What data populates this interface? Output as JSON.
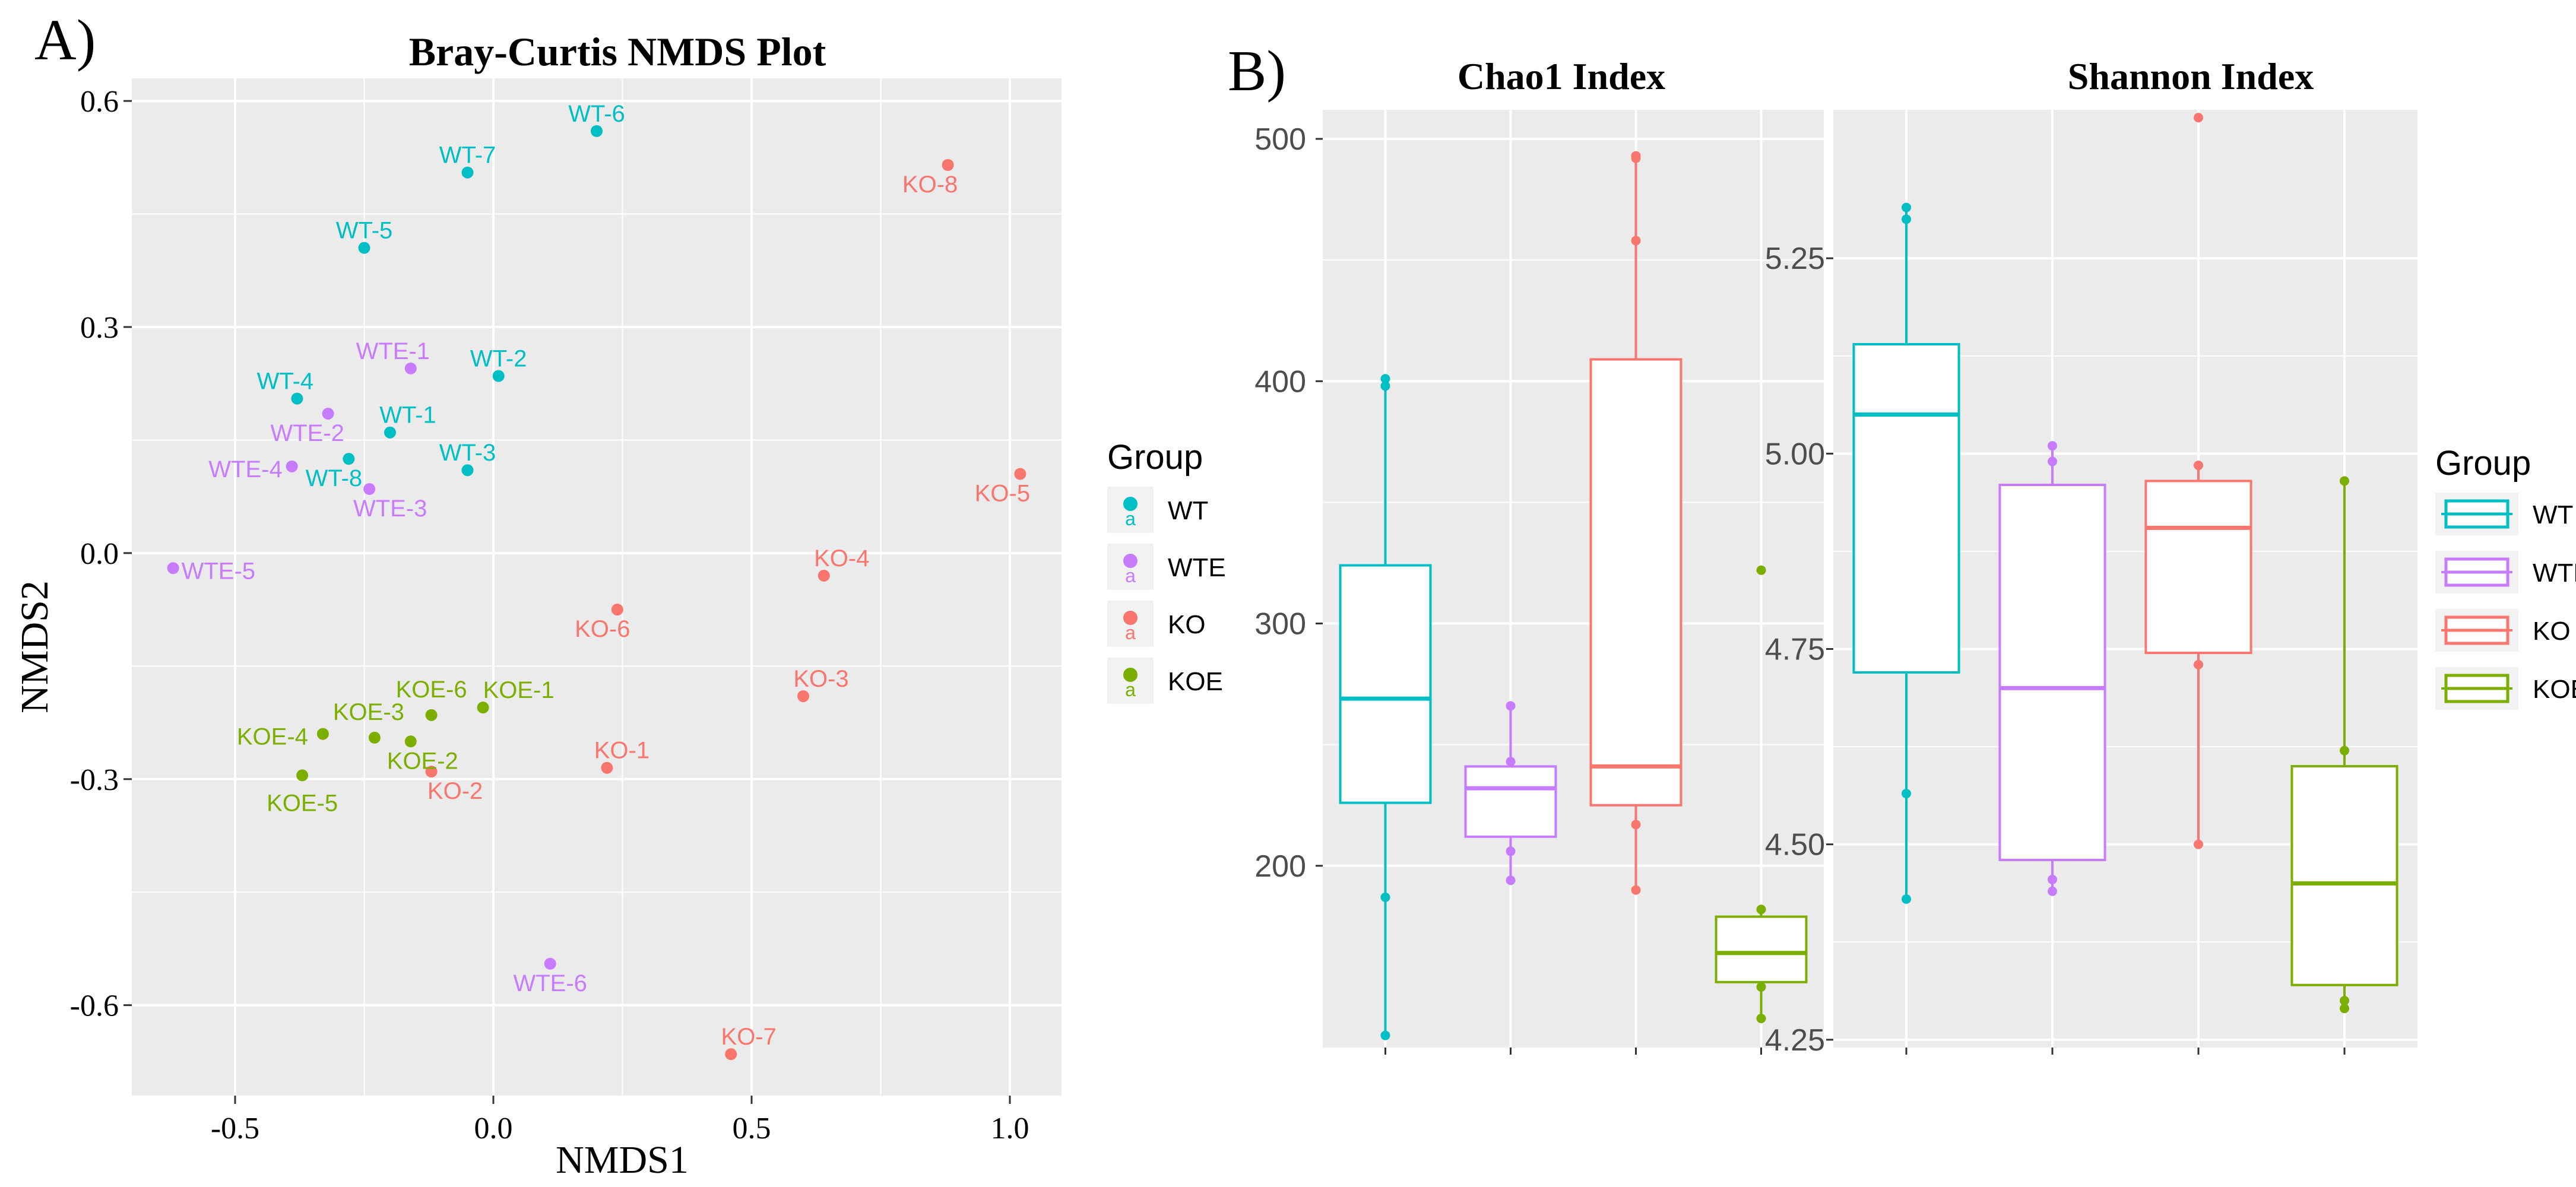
{
  "panel_labels": {
    "a": "A)",
    "b": "B)"
  },
  "colors": {
    "WT": "#00BFC4",
    "WTE": "#C77CFF",
    "KO": "#F8766D",
    "KOE": "#7CAE00",
    "panel": "#EBEBEB",
    "grid": "#FFFFFF",
    "axis_text": "#4D4D4D"
  },
  "legend": {
    "title": "Group",
    "entries": [
      {
        "label": "WT",
        "color": "#00BFC4"
      },
      {
        "label": "WTE",
        "color": "#C77CFF"
      },
      {
        "label": "KO",
        "color": "#F8766D"
      },
      {
        "label": "KOE",
        "color": "#7CAE00"
      }
    ]
  },
  "chart_data": [
    {
      "type": "scatter",
      "title": "Bray-Curtis NMDS Plot",
      "xlabel": "NMDS1",
      "ylabel": "NMDS2",
      "xlim": [
        -0.7,
        1.1
      ],
      "ylim": [
        -0.72,
        0.63
      ],
      "xticks": [
        -0.5,
        0.0,
        0.5,
        1.0
      ],
      "xtick_labels": [
        "-0.5",
        "0.0",
        "0.5",
        "1.0"
      ],
      "yticks": [
        0.6,
        0.3,
        0.0,
        -0.3,
        -0.6
      ],
      "ytick_labels": [
        "0.6",
        "0.3",
        "0.0",
        "-0.3",
        "-0.6"
      ],
      "points": [
        {
          "label": "WT-6",
          "group": "WT",
          "x": 0.2,
          "y": 0.56
        },
        {
          "label": "WT-7",
          "group": "WT",
          "x": -0.05,
          "y": 0.505
        },
        {
          "label": "WT-5",
          "group": "WT",
          "x": -0.25,
          "y": 0.405
        },
        {
          "label": "WT-2",
          "group": "WT",
          "x": 0.01,
          "y": 0.235
        },
        {
          "label": "WT-4",
          "group": "WT",
          "x": -0.38,
          "y": 0.205
        },
        {
          "label": "WT-1",
          "group": "WT",
          "x": -0.2,
          "y": 0.16
        },
        {
          "label": "WT-8",
          "group": "WT",
          "x": -0.28,
          "y": 0.125
        },
        {
          "label": "WT-3",
          "group": "WT",
          "x": -0.05,
          "y": 0.11
        },
        {
          "label": "WTE-1",
          "group": "WTE",
          "x": -0.16,
          "y": 0.245
        },
        {
          "label": "WTE-2",
          "group": "WTE",
          "x": -0.32,
          "y": 0.185
        },
        {
          "label": "WTE-4",
          "group": "WTE",
          "x": -0.39,
          "y": 0.115
        },
        {
          "label": "WTE-3",
          "group": "WTE",
          "x": -0.24,
          "y": 0.085
        },
        {
          "label": "WTE-5",
          "group": "WTE",
          "x": -0.62,
          "y": -0.02
        },
        {
          "label": "WTE-6",
          "group": "WTE",
          "x": 0.11,
          "y": -0.545
        },
        {
          "label": "KO-8",
          "group": "KO",
          "x": 0.88,
          "y": 0.515
        },
        {
          "label": "KO-5",
          "group": "KO",
          "x": 1.02,
          "y": 0.105
        },
        {
          "label": "KO-4",
          "group": "KO",
          "x": 0.64,
          "y": -0.03
        },
        {
          "label": "KO-6",
          "group": "KO",
          "x": 0.24,
          "y": -0.075
        },
        {
          "label": "KO-3",
          "group": "KO",
          "x": 0.6,
          "y": -0.19
        },
        {
          "label": "KO-1",
          "group": "KO",
          "x": 0.22,
          "y": -0.285
        },
        {
          "label": "KO-2",
          "group": "KO",
          "x": -0.12,
          "y": -0.29
        },
        {
          "label": "KO-7",
          "group": "KO",
          "x": 0.46,
          "y": -0.665
        },
        {
          "label": "KOE-6",
          "group": "KOE",
          "x": -0.12,
          "y": -0.215
        },
        {
          "label": "KOE-1",
          "group": "KOE",
          "x": -0.02,
          "y": -0.205
        },
        {
          "label": "KOE-3",
          "group": "KOE",
          "x": -0.23,
          "y": -0.245
        },
        {
          "label": "KOE-4",
          "group": "KOE",
          "x": -0.33,
          "y": -0.24
        },
        {
          "label": "KOE-2",
          "group": "KOE",
          "x": -0.16,
          "y": -0.25
        },
        {
          "label": "KOE-5",
          "group": "KOE",
          "x": -0.37,
          "y": -0.295
        }
      ]
    },
    {
      "type": "box",
      "title": "Chao1 Index",
      "ylim": [
        125,
        512
      ],
      "yticks": [
        200,
        300,
        400,
        500
      ],
      "ytick_labels": [
        "200",
        "300",
        "400",
        "500"
      ],
      "boxes": [
        {
          "group": "WT",
          "whisker_low": 130,
          "q1": 226,
          "median": 269,
          "q3": 324,
          "whisker_high": 402,
          "points": [
            130,
            187,
            398,
            401
          ]
        },
        {
          "group": "WTE",
          "whisker_low": 194,
          "q1": 212,
          "median": 232,
          "q3": 241,
          "whisker_high": 267,
          "points": [
            194,
            206,
            243,
            266
          ]
        },
        {
          "group": "KO",
          "whisker_low": 190,
          "q1": 225,
          "median": 241,
          "q3": 409,
          "whisker_high": 493,
          "points": [
            190,
            217,
            458,
            492,
            493
          ]
        },
        {
          "group": "KOE",
          "whisker_low": 137,
          "q1": 152,
          "median": 164,
          "q3": 179,
          "whisker_high": 183,
          "points": [
            137,
            150,
            182,
            322
          ]
        }
      ]
    },
    {
      "type": "box",
      "title": "Shannon Index",
      "ylim": [
        4.24,
        5.44
      ],
      "yticks": [
        4.25,
        4.5,
        4.75,
        5.0,
        5.25
      ],
      "ytick_labels": [
        "4.25",
        "4.50",
        "4.75",
        "5.00",
        "5.25"
      ],
      "boxes": [
        {
          "group": "WT",
          "whisker_low": 4.43,
          "q1": 4.72,
          "median": 5.05,
          "q3": 5.14,
          "whisker_high": 5.32,
          "points": [
            4.43,
            4.565,
            5.3,
            5.315
          ]
        },
        {
          "group": "WTE",
          "whisker_low": 4.44,
          "q1": 4.48,
          "median": 4.7,
          "q3": 4.96,
          "whisker_high": 5.01,
          "points": [
            4.44,
            4.455,
            4.99,
            5.01
          ]
        },
        {
          "group": "KO",
          "whisker_low": 4.5,
          "q1": 4.745,
          "median": 4.905,
          "q3": 4.965,
          "whisker_high": 4.99,
          "points": [
            4.5,
            4.73,
            4.985,
            5.43
          ]
        },
        {
          "group": "KOE",
          "whisker_low": 4.29,
          "q1": 4.32,
          "median": 4.45,
          "q3": 4.6,
          "whisker_high": 4.965,
          "points": [
            4.29,
            4.3,
            4.62,
            4.965
          ]
        }
      ]
    }
  ]
}
